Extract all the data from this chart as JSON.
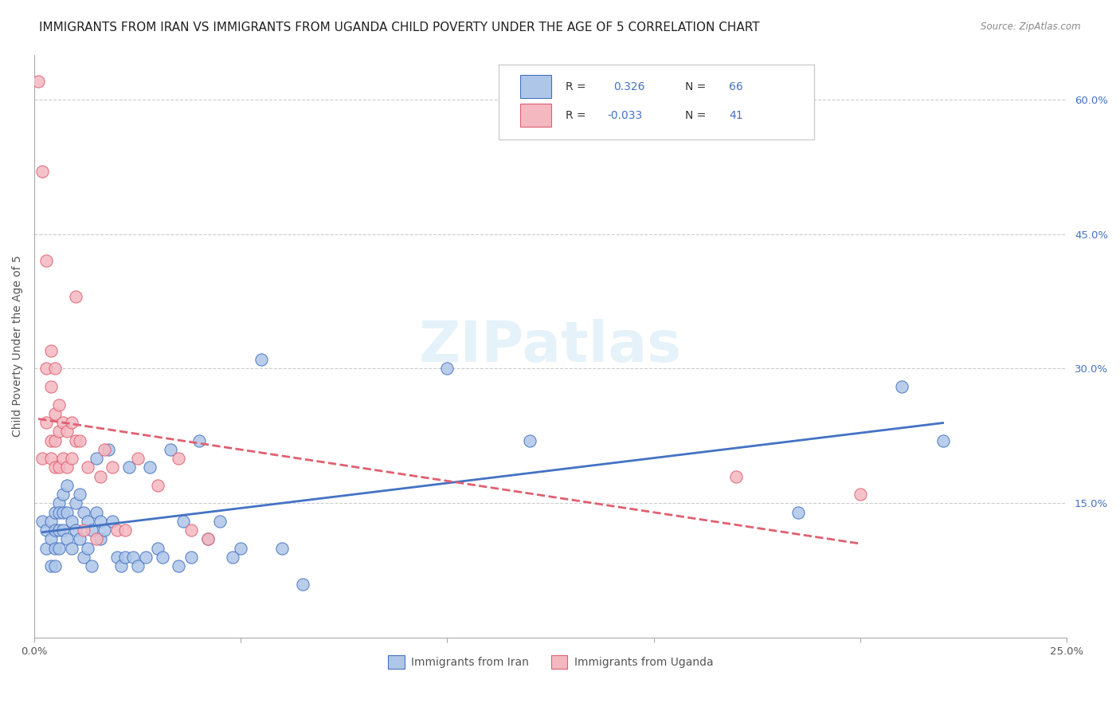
{
  "title": "IMMIGRANTS FROM IRAN VS IMMIGRANTS FROM UGANDA CHILD POVERTY UNDER THE AGE OF 5 CORRELATION CHART",
  "source": "Source: ZipAtlas.com",
  "ylabel": "Child Poverty Under the Age of 5",
  "xlim": [
    0.0,
    0.25
  ],
  "ylim": [
    0.0,
    0.65
  ],
  "x_ticks": [
    0.0,
    0.05,
    0.1,
    0.15,
    0.2,
    0.25
  ],
  "x_tick_labels": [
    "0.0%",
    "",
    "",
    "",
    "",
    "25.0%"
  ],
  "y_ticks_right": [
    0.15,
    0.3,
    0.45,
    0.6
  ],
  "y_tick_labels_right": [
    "15.0%",
    "30.0%",
    "45.0%",
    "60.0%"
  ],
  "grid_color": "#cccccc",
  "background_color": "#ffffff",
  "iran_color": "#aec6e8",
  "uganda_color": "#f4b8c1",
  "iran_line_color": "#4472c4",
  "uganda_line_color": "#e06070",
  "iran_R": "0.326",
  "iran_N": "66",
  "uganda_R": "-0.033",
  "uganda_N": "41",
  "iran_scatter_x": [
    0.002,
    0.003,
    0.003,
    0.004,
    0.004,
    0.004,
    0.005,
    0.005,
    0.005,
    0.005,
    0.006,
    0.006,
    0.006,
    0.006,
    0.007,
    0.007,
    0.007,
    0.008,
    0.008,
    0.008,
    0.009,
    0.009,
    0.01,
    0.01,
    0.011,
    0.011,
    0.012,
    0.012,
    0.013,
    0.013,
    0.014,
    0.014,
    0.015,
    0.015,
    0.016,
    0.016,
    0.017,
    0.018,
    0.019,
    0.02,
    0.021,
    0.022,
    0.023,
    0.024,
    0.025,
    0.027,
    0.028,
    0.03,
    0.031,
    0.033,
    0.035,
    0.036,
    0.038,
    0.04,
    0.042,
    0.045,
    0.048,
    0.05,
    0.055,
    0.06,
    0.065,
    0.1,
    0.12,
    0.185,
    0.21,
    0.22
  ],
  "iran_scatter_y": [
    0.13,
    0.12,
    0.1,
    0.13,
    0.11,
    0.08,
    0.14,
    0.12,
    0.1,
    0.08,
    0.15,
    0.14,
    0.12,
    0.1,
    0.16,
    0.14,
    0.12,
    0.17,
    0.14,
    0.11,
    0.13,
    0.1,
    0.15,
    0.12,
    0.16,
    0.11,
    0.14,
    0.09,
    0.13,
    0.1,
    0.12,
    0.08,
    0.2,
    0.14,
    0.13,
    0.11,
    0.12,
    0.21,
    0.13,
    0.09,
    0.08,
    0.09,
    0.19,
    0.09,
    0.08,
    0.09,
    0.19,
    0.1,
    0.09,
    0.21,
    0.08,
    0.13,
    0.09,
    0.22,
    0.11,
    0.13,
    0.09,
    0.1,
    0.31,
    0.1,
    0.06,
    0.3,
    0.22,
    0.14,
    0.28,
    0.22
  ],
  "uganda_scatter_x": [
    0.001,
    0.002,
    0.002,
    0.003,
    0.003,
    0.003,
    0.004,
    0.004,
    0.004,
    0.004,
    0.005,
    0.005,
    0.005,
    0.005,
    0.006,
    0.006,
    0.006,
    0.007,
    0.007,
    0.008,
    0.008,
    0.009,
    0.009,
    0.01,
    0.01,
    0.011,
    0.012,
    0.013,
    0.015,
    0.016,
    0.017,
    0.019,
    0.02,
    0.022,
    0.025,
    0.03,
    0.035,
    0.038,
    0.042,
    0.17,
    0.2
  ],
  "uganda_scatter_y": [
    0.62,
    0.52,
    0.2,
    0.42,
    0.3,
    0.24,
    0.32,
    0.28,
    0.22,
    0.2,
    0.3,
    0.25,
    0.22,
    0.19,
    0.26,
    0.23,
    0.19,
    0.24,
    0.2,
    0.23,
    0.19,
    0.24,
    0.2,
    0.38,
    0.22,
    0.22,
    0.12,
    0.19,
    0.11,
    0.18,
    0.21,
    0.19,
    0.12,
    0.12,
    0.2,
    0.17,
    0.2,
    0.12,
    0.11,
    0.18,
    0.16
  ],
  "legend_iran_label": "Immigrants from Iran",
  "legend_uganda_label": "Immigrants from Uganda",
  "watermark": "ZIPatlas",
  "title_fontsize": 11,
  "axis_label_fontsize": 10,
  "tick_fontsize": 9.5
}
